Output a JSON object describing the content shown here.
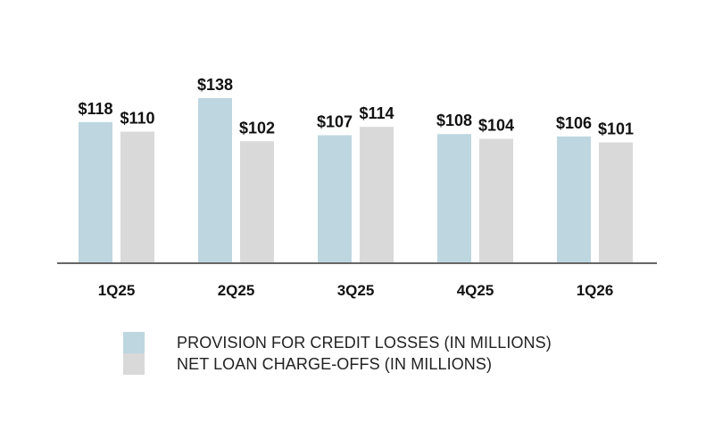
{
  "chart_data": {
    "type": "bar",
    "categories": [
      "1Q25",
      "2Q25",
      "3Q25",
      "4Q25",
      "1Q26"
    ],
    "series": [
      {
        "name": "PROVISION FOR CREDIT LOSSES (IN MILLIONS)",
        "values": [
          118,
          138,
          107,
          108,
          106
        ],
        "labels": [
          "$118",
          "$138",
          "$107",
          "$108",
          "$106"
        ],
        "color": "#bed6e0"
      },
      {
        "name": "NET LOAN CHARGE-OFFS (IN MILLIONS)",
        "values": [
          110,
          102,
          114,
          104,
          101
        ],
        "labels": [
          "$110",
          "$102",
          "$114",
          "$104",
          "$101"
        ],
        "color": "#d9d9d9"
      }
    ],
    "ylim": [
      0,
      138
    ],
    "grid": false,
    "legend_position": "bottom-center",
    "axis_color": "#666666"
  }
}
